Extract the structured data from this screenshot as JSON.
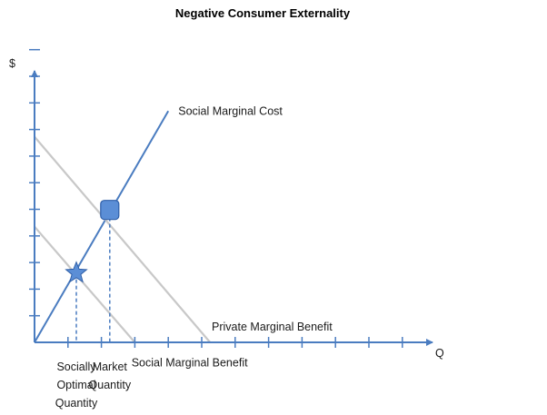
{
  "chart_data": {
    "type": "line",
    "title": "Negative Consumer Externality",
    "ylabel": "$",
    "xlabel": "Q",
    "xlim": [
      0,
      12
    ],
    "ylim": [
      0,
      12
    ],
    "x_ticks": 11,
    "y_ticks": 11,
    "series": [
      {
        "name": "Social Marginal Cost",
        "color": "#4a7cc0",
        "points": [
          [
            0,
            0
          ],
          [
            8,
            9
          ]
        ]
      },
      {
        "name": "Private Marginal Benefit",
        "color": "#c8c8c8",
        "points": [
          [
            0,
            8
          ],
          [
            10.5,
            0
          ]
        ]
      },
      {
        "name": "Social Marginal Benefit",
        "color": "#c8c8c8",
        "points": [
          [
            0,
            4.5
          ],
          [
            6,
            0
          ]
        ]
      }
    ],
    "points": [
      {
        "name": "Market Quantity",
        "marker": "square",
        "x": 4.5,
        "y": 5.1
      },
      {
        "name": "Socially Optimal Quantity",
        "marker": "star",
        "x": 2.5,
        "y": 2.7
      }
    ],
    "annotations": [
      {
        "text": "Social Marginal Cost",
        "at": [
          8.6,
          9.0
        ]
      },
      {
        "text": "Private Marginal Benefit",
        "at": [
          10.6,
          0.6
        ]
      },
      {
        "text": "Social Marginal Benefit",
        "at": [
          5.8,
          -0.8
        ]
      }
    ],
    "x_labels": [
      {
        "lines": [
          "Socially",
          "Optimal",
          "Quantity"
        ],
        "x": 2.5
      },
      {
        "lines": [
          "Market",
          "Quantity"
        ],
        "x": 4.5
      }
    ],
    "colors": {
      "axis": "#4a7cc0",
      "marker_fill": "#5b8ed6",
      "marker_stroke": "#2f5fa8"
    }
  }
}
